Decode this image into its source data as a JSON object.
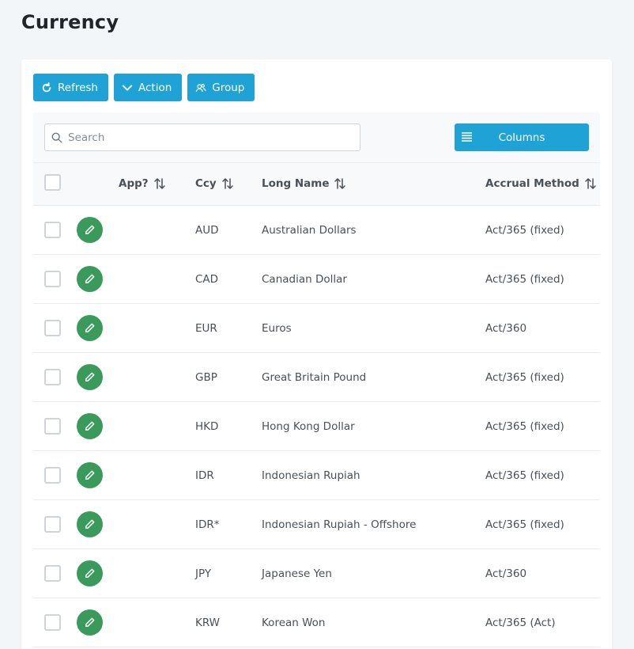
{
  "page": {
    "title": "Currency"
  },
  "toolbar": {
    "refresh_label": "Refresh",
    "action_label": "Action",
    "group_label": "Group"
  },
  "search": {
    "placeholder": "Search",
    "value": ""
  },
  "columns_button": {
    "label": "Columns"
  },
  "table": {
    "headers": {
      "app": "App?",
      "ccy": "Ccy",
      "long_name": "Long Name",
      "accrual_method": "Accrual Method"
    },
    "rows": [
      {
        "ccy": "AUD",
        "long_name": "Australian Dollars",
        "accrual_method": "Act/365 (fixed)"
      },
      {
        "ccy": "CAD",
        "long_name": "Canadian Dollar",
        "accrual_method": "Act/365 (fixed)"
      },
      {
        "ccy": "EUR",
        "long_name": "Euros",
        "accrual_method": "Act/360"
      },
      {
        "ccy": "GBP",
        "long_name": "Great Britain Pound",
        "accrual_method": "Act/365 (fixed)"
      },
      {
        "ccy": "HKD",
        "long_name": "Hong Kong Dollar",
        "accrual_method": "Act/365 (fixed)"
      },
      {
        "ccy": "IDR",
        "long_name": "Indonesian Rupiah",
        "accrual_method": "Act/365 (fixed)"
      },
      {
        "ccy": "IDR*",
        "long_name": "Indonesian Rupiah - Offshore",
        "accrual_method": "Act/365 (fixed)"
      },
      {
        "ccy": "JPY",
        "long_name": "Japanese Yen",
        "accrual_method": "Act/360"
      },
      {
        "ccy": "KRW",
        "long_name": "Korean Won",
        "accrual_method": "Act/365 (Act)"
      }
    ]
  },
  "colors": {
    "primary": "#1fa3d6",
    "edit": "#3a9a5b",
    "background": "#f3f6f9"
  }
}
